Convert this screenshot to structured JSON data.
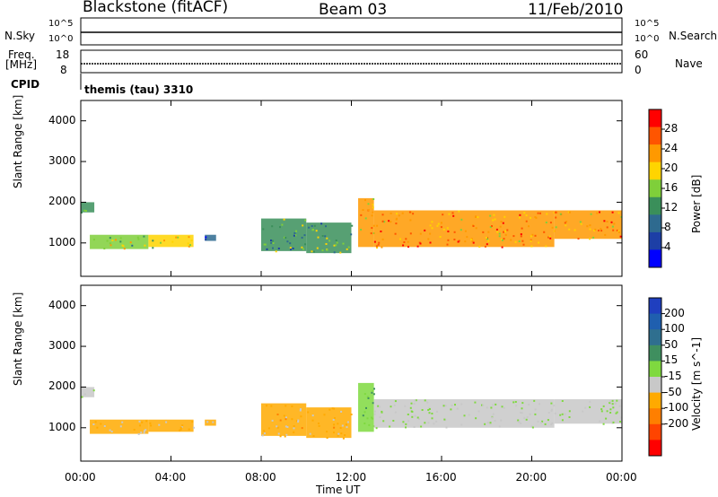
{
  "header": {
    "station": "Blackstone (fitACF)",
    "beam": "Beam 03",
    "date": "11/Feb/2010"
  },
  "status_panels": {
    "nsky_label": "N.Sky",
    "nsearch_label": "N.Search",
    "freq_label_1": "Freq.",
    "freq_label_2": "[MHz]",
    "cpid_label": "CPID",
    "nave_label": "Nave",
    "scale_top": "10^5",
    "scale_bottom": "10^0",
    "scale_top_right": "10^5",
    "scale_bottom_right": "10^0",
    "freq_tick_high": "18",
    "freq_tick_low": "8",
    "nave_tick_high": "60",
    "nave_tick_low": "0",
    "cpid_text": "themis (tau) 3310"
  },
  "colors": {
    "power_scale": [
      "#0000ff",
      "#1d3fa6",
      "#2e6a8f",
      "#3a8f5a",
      "#7fcf3a",
      "#ffd400",
      "#ff9900",
      "#ff5500",
      "#ff0000"
    ],
    "velocity_scale": [
      "#1f3fbf",
      "#1f5faf",
      "#2f6f8f",
      "#3f8f5f",
      "#7fd93f",
      "#c8c8c8",
      "#ffaa00",
      "#ff7f00",
      "#ff4400",
      "#ff0000"
    ],
    "ground_scatter": "#b0b0b0"
  },
  "chart_data": [
    {
      "type": "heatmap",
      "title": "",
      "ylabel": "Slant Range [km]",
      "xlabel": "",
      "x_ticks": [
        "00:00",
        "04:00",
        "08:00",
        "12:00",
        "16:00",
        "20:00",
        "00:00"
      ],
      "y_ticks": [
        "1000",
        "2000",
        "3000",
        "4000"
      ],
      "ylim": [
        180,
        4500
      ],
      "colorbar": {
        "label": "Power [dB]",
        "ticks": [
          "4",
          "8",
          "12",
          "16",
          "20",
          "24",
          "28"
        ],
        "range": [
          0,
          32
        ]
      },
      "echo_regions": [
        {
          "t_start": 0.0,
          "t_end": 0.6,
          "r_low": 1750,
          "r_high": 2000,
          "power": 14
        },
        {
          "t_start": 0.4,
          "t_end": 3.0,
          "r_low": 850,
          "r_high": 1200,
          "power": 16
        },
        {
          "t_start": 3.0,
          "t_end": 5.0,
          "r_low": 900,
          "r_high": 1200,
          "power": 18
        },
        {
          "t_start": 5.5,
          "t_end": 6.0,
          "r_low": 1050,
          "r_high": 1200,
          "power": 8
        },
        {
          "t_start": 8.0,
          "t_end": 10.0,
          "r_low": 800,
          "r_high": 1600,
          "power": 12
        },
        {
          "t_start": 10.0,
          "t_end": 12.0,
          "r_low": 750,
          "r_high": 1500,
          "power": 14
        },
        {
          "t_start": 12.3,
          "t_end": 13.0,
          "r_low": 900,
          "r_high": 2100,
          "power": 22
        },
        {
          "t_start": 13.0,
          "t_end": 21.0,
          "r_low": 900,
          "r_high": 1800,
          "power": 24
        },
        {
          "t_start": 21.0,
          "t_end": 24.0,
          "r_low": 1100,
          "r_high": 1800,
          "power": 24
        }
      ]
    },
    {
      "type": "heatmap",
      "title": "",
      "ylabel": "Slant Range [km]",
      "xlabel": "Time UT",
      "x_ticks": [
        "00:00",
        "04:00",
        "08:00",
        "12:00",
        "16:00",
        "20:00",
        "00:00"
      ],
      "y_ticks": [
        "1000",
        "2000",
        "3000",
        "4000"
      ],
      "ylim": [
        180,
        4500
      ],
      "colorbar": {
        "label": "Velocity [m s^-1]",
        "ticks": [
          "200",
          "100",
          "50",
          "15",
          "-15",
          "-50",
          "-100",
          "-200"
        ],
        "range": [
          -250,
          250
        ]
      },
      "echo_regions": [
        {
          "t_start": 0.0,
          "t_end": 0.6,
          "r_low": 1750,
          "r_high": 2000,
          "velocity": 0
        },
        {
          "t_start": 0.4,
          "t_end": 3.0,
          "r_low": 850,
          "r_high": 1200,
          "velocity": -50
        },
        {
          "t_start": 3.0,
          "t_end": 5.0,
          "r_low": 900,
          "r_high": 1200,
          "velocity": -50
        },
        {
          "t_start": 5.5,
          "t_end": 6.0,
          "r_low": 1050,
          "r_high": 1200,
          "velocity": -50
        },
        {
          "t_start": 8.0,
          "t_end": 10.0,
          "r_low": 800,
          "r_high": 1600,
          "velocity": -60
        },
        {
          "t_start": 10.0,
          "t_end": 12.0,
          "r_low": 750,
          "r_high": 1500,
          "velocity": -60
        },
        {
          "t_start": 12.3,
          "t_end": 13.0,
          "r_low": 900,
          "r_high": 2100,
          "velocity": 40
        },
        {
          "t_start": 13.0,
          "t_end": 21.0,
          "r_low": 1000,
          "r_high": 1700,
          "velocity": 0
        },
        {
          "t_start": 21.0,
          "t_end": 24.0,
          "r_low": 1100,
          "r_high": 1700,
          "velocity": 0
        }
      ]
    }
  ]
}
